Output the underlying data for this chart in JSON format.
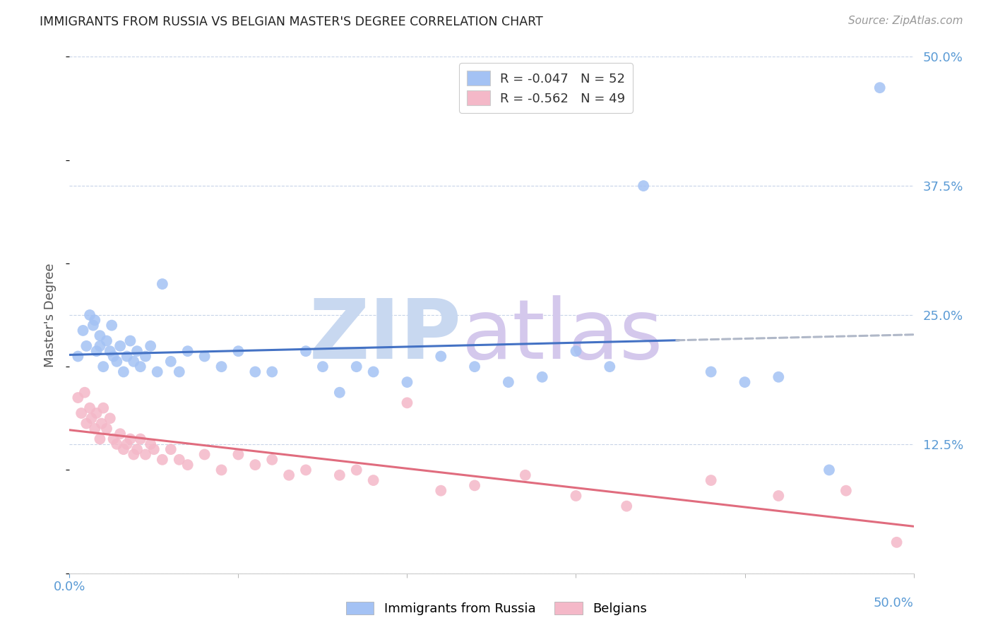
{
  "title": "IMMIGRANTS FROM RUSSIA VS BELGIAN MASTER'S DEGREE CORRELATION CHART",
  "source": "Source: ZipAtlas.com",
  "ylabel": "Master's Degree",
  "xlim": [
    0.0,
    0.5
  ],
  "ylim": [
    0.0,
    0.5
  ],
  "yticks": [
    0.0,
    0.125,
    0.25,
    0.375,
    0.5
  ],
  "ytick_labels": [
    "",
    "12.5%",
    "25.0%",
    "37.5%",
    "50.0%"
  ],
  "series1_color": "#a4c2f4",
  "series2_color": "#f4b8c8",
  "trendline1_color": "#4472c4",
  "trendline2_color": "#e06c7e",
  "trendline1_dashed_color": "#b0b8c8",
  "background_color": "#ffffff",
  "grid_color": "#c8d4e8",
  "axis_color": "#5b9bd5",
  "legend1_label": "R = -0.047   N = 52",
  "legend2_label": "R = -0.562   N = 49",
  "bottom_legend1": "Immigrants from Russia",
  "bottom_legend2": "Belgians",
  "series1_x": [
    0.005,
    0.008,
    0.01,
    0.012,
    0.014,
    0.015,
    0.016,
    0.018,
    0.018,
    0.02,
    0.022,
    0.024,
    0.025,
    0.026,
    0.028,
    0.03,
    0.032,
    0.034,
    0.036,
    0.038,
    0.04,
    0.042,
    0.045,
    0.048,
    0.052,
    0.055,
    0.06,
    0.065,
    0.07,
    0.08,
    0.09,
    0.1,
    0.11,
    0.12,
    0.14,
    0.15,
    0.16,
    0.17,
    0.18,
    0.2,
    0.22,
    0.24,
    0.26,
    0.28,
    0.3,
    0.32,
    0.34,
    0.38,
    0.4,
    0.42,
    0.45,
    0.48
  ],
  "series1_y": [
    0.21,
    0.235,
    0.22,
    0.25,
    0.24,
    0.245,
    0.215,
    0.23,
    0.22,
    0.2,
    0.225,
    0.215,
    0.24,
    0.21,
    0.205,
    0.22,
    0.195,
    0.21,
    0.225,
    0.205,
    0.215,
    0.2,
    0.21,
    0.22,
    0.195,
    0.28,
    0.205,
    0.195,
    0.215,
    0.21,
    0.2,
    0.215,
    0.195,
    0.195,
    0.215,
    0.2,
    0.175,
    0.2,
    0.195,
    0.185,
    0.21,
    0.2,
    0.185,
    0.19,
    0.215,
    0.2,
    0.375,
    0.195,
    0.185,
    0.19,
    0.1,
    0.47
  ],
  "series2_x": [
    0.005,
    0.007,
    0.009,
    0.01,
    0.012,
    0.013,
    0.015,
    0.016,
    0.018,
    0.019,
    0.02,
    0.022,
    0.024,
    0.026,
    0.028,
    0.03,
    0.032,
    0.034,
    0.036,
    0.038,
    0.04,
    0.042,
    0.045,
    0.048,
    0.05,
    0.055,
    0.06,
    0.065,
    0.07,
    0.08,
    0.09,
    0.1,
    0.11,
    0.12,
    0.13,
    0.14,
    0.16,
    0.17,
    0.18,
    0.2,
    0.22,
    0.24,
    0.27,
    0.3,
    0.33,
    0.38,
    0.42,
    0.46,
    0.49
  ],
  "series2_y": [
    0.17,
    0.155,
    0.175,
    0.145,
    0.16,
    0.15,
    0.14,
    0.155,
    0.13,
    0.145,
    0.16,
    0.14,
    0.15,
    0.13,
    0.125,
    0.135,
    0.12,
    0.125,
    0.13,
    0.115,
    0.12,
    0.13,
    0.115,
    0.125,
    0.12,
    0.11,
    0.12,
    0.11,
    0.105,
    0.115,
    0.1,
    0.115,
    0.105,
    0.11,
    0.095,
    0.1,
    0.095,
    0.1,
    0.09,
    0.165,
    0.08,
    0.085,
    0.095,
    0.075,
    0.065,
    0.09,
    0.075,
    0.08,
    0.03
  ],
  "trendline1_solid_end": 0.36,
  "trendline1_dash_start": 0.36
}
